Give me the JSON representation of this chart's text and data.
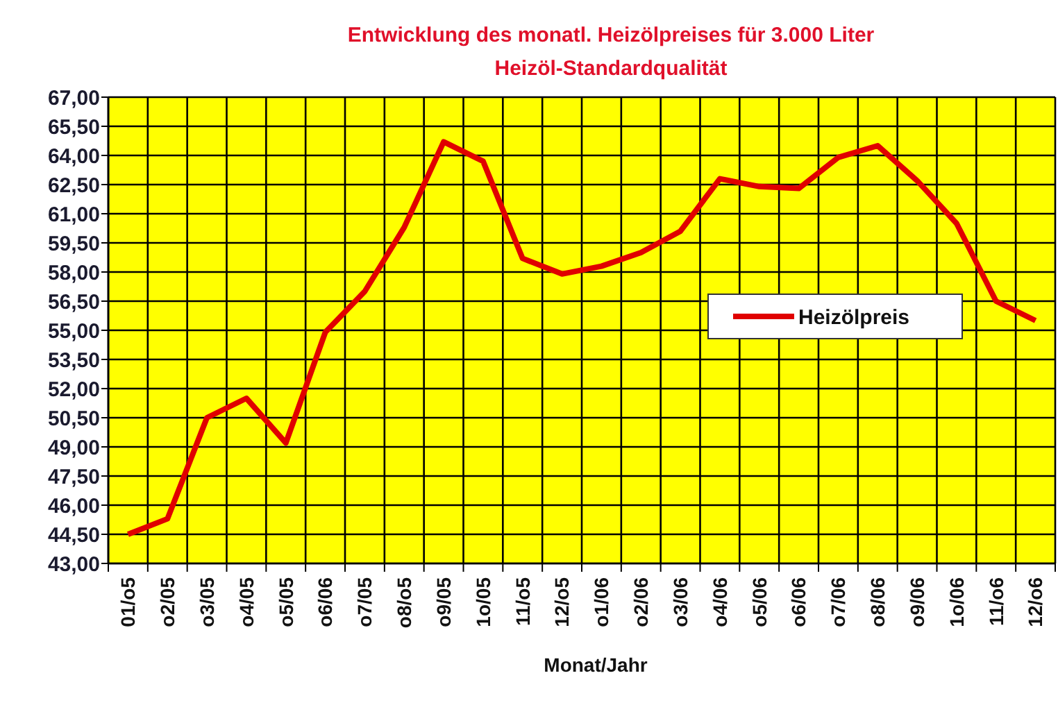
{
  "chart_data": {
    "type": "line",
    "title": "Entwicklung des monatl. Heizölpreises für 3.000 Liter",
    "subtitle": "Heizöl-Standardqualität",
    "xlabel": "Monat/Jahr",
    "categories": [
      "01/o5",
      "o2/05",
      "o3/05",
      "o4/05",
      "o5/05",
      "o6/06",
      "o7/05",
      "o8/o5",
      "o9/05",
      "1o/05",
      "11/o5",
      "12/o5",
      "o1/06",
      "o2/06",
      "o3/06",
      "o4/06",
      "o5/06",
      "o6/06",
      "o7/06",
      "o8/06",
      "o9/06",
      "1o/06",
      "11/o6",
      "12/o6"
    ],
    "series": [
      {
        "name": "Heizölpreis",
        "color": "#e00000",
        "values": [
          44.5,
          45.3,
          50.5,
          51.5,
          49.2,
          54.9,
          57.0,
          60.3,
          64.7,
          63.7,
          58.7,
          57.9,
          58.3,
          59.0,
          60.1,
          62.8,
          62.4,
          62.3,
          63.9,
          64.5,
          62.7,
          60.5,
          56.5,
          55.5
        ]
      }
    ],
    "ylim": [
      43,
      67
    ],
    "yticks": [
      {
        "value": 43,
        "label": "43,00"
      },
      {
        "value": 44.5,
        "label": "44,50"
      },
      {
        "value": 46,
        "label": "46,00"
      },
      {
        "value": 47.5,
        "label": "47,50"
      },
      {
        "value": 49,
        "label": "49,00"
      },
      {
        "value": 50.5,
        "label": "50,50"
      },
      {
        "value": 52,
        "label": "52,00"
      },
      {
        "value": 53.5,
        "label": "53,50"
      },
      {
        "value": 55,
        "label": "55,00"
      },
      {
        "value": 56.5,
        "label": "56,50"
      },
      {
        "value": 58,
        "label": "58,00"
      },
      {
        "value": 59.5,
        "label": "59,50"
      },
      {
        "value": 61,
        "label": "61,00"
      },
      {
        "value": 62.5,
        "label": "62,50"
      },
      {
        "value": 64,
        "label": "64,00"
      },
      {
        "value": 65.5,
        "label": "65,50"
      },
      {
        "value": 67,
        "label": "67,00"
      }
    ],
    "grid": true,
    "legend": "right",
    "marker": "none"
  }
}
